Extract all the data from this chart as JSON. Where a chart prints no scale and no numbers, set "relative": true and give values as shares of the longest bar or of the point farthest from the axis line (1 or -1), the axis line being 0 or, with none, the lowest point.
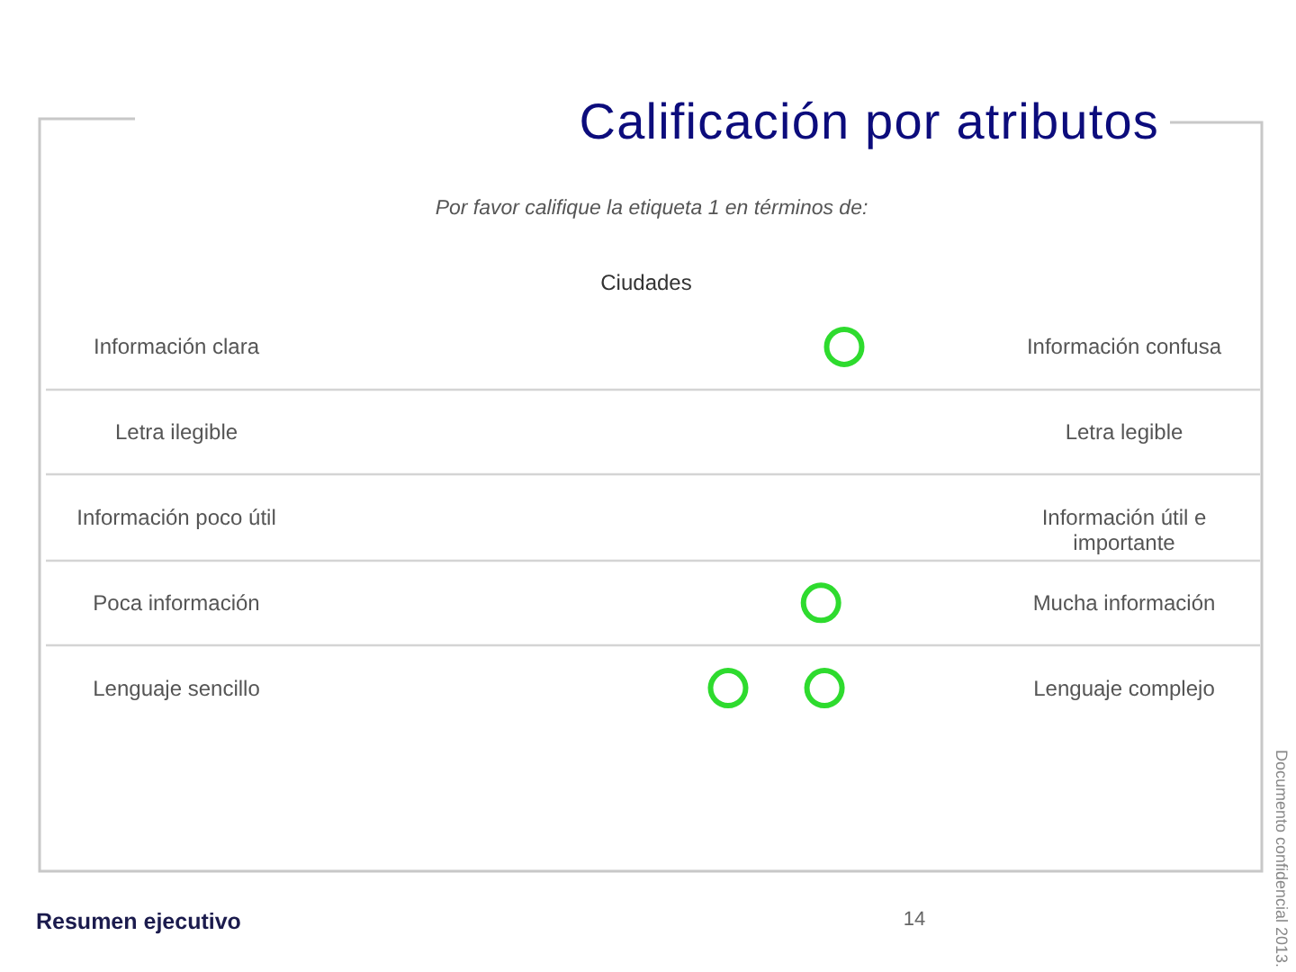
{
  "chart_data": {
    "type": "scatter",
    "title": "Calificación por atributos",
    "subtitle": "Por favor califique la etiqueta 1 en términos de:",
    "categories": [
      "Información clara",
      "Letra ilegible",
      "Información poco útil",
      "Poca información",
      "Lenguaje sencillo"
    ],
    "y2_categories": [
      "Información confusa",
      "Letra legible",
      "Información útil e importante",
      "Mucha información",
      "Lenguaje complejo"
    ],
    "orientation": "horizontal",
    "relative": true,
    "series": [
      {
        "color": "#2edb2e",
        "values": [
          1,
          null,
          null,
          0.8,
          0.83
        ]
      },
      {
        "color": "#2edb2e",
        "values": [
          null,
          null,
          null,
          null,
          0
        ]
      }
    ],
    "marker": "circle",
    "grid": "y",
    "tick_labels": "y",
    "annotations": [
      "Ciudades",
      "Resumen ejecutivo",
      "14",
      "Documento confidencial 2013."
    ]
  }
}
